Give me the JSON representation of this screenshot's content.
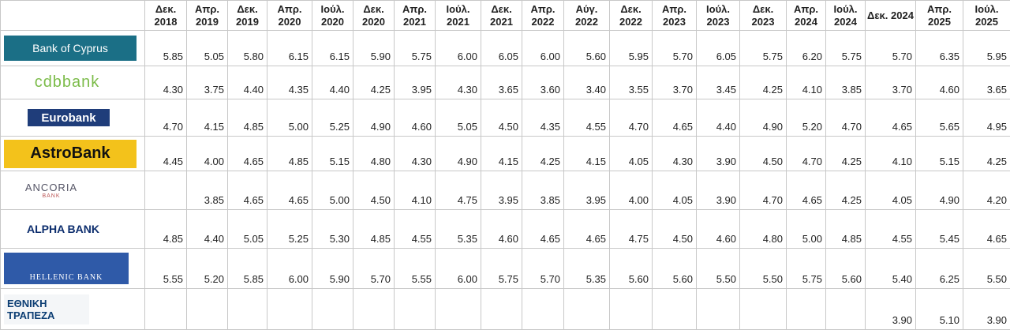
{
  "header": {
    "columns": [
      "Δεκ. 2018",
      "Απρ. 2019",
      "Δεκ. 2019",
      "Απρ. 2020",
      "Ιούλ. 2020",
      "Δεκ. 2020",
      "Απρ. 2021",
      "Ιούλ. 2021",
      "Δεκ. 2021",
      "Απρ. 2022",
      "Αύγ. 2022",
      "Δεκ. 2022",
      "Απρ. 2023",
      "Ιούλ. 2023",
      "Δεκ. 2023",
      "Απρ. 2024",
      "Ιούλ. 2024",
      "Δεκ. 2024",
      "Απρ. 2025",
      "Ιούλ. 2025"
    ]
  },
  "table": {
    "rows": [
      {
        "bank": [
          "Bank of Cyprus"
        ],
        "values": [
          "5.85",
          "5.05",
          "5.80",
          "6.15",
          "6.15",
          "5.90",
          "5.75",
          "6.00",
          "6.05",
          "6.00",
          "5.60",
          "5.95",
          "5.70",
          "6.05",
          "5.75",
          "6.20",
          "5.75",
          "5.70",
          "6.35",
          "5.95"
        ]
      },
      {
        "bank": [
          "cdbbank"
        ],
        "values": [
          "4.30",
          "3.75",
          "4.40",
          "4.35",
          "4.40",
          "4.25",
          "3.95",
          "4.30",
          "3.65",
          "3.60",
          "3.40",
          "3.55",
          "3.70",
          "3.45",
          "4.25",
          "4.10",
          "3.85",
          "3.70",
          "4.60",
          "3.65"
        ]
      },
      {
        "bank": [
          "Eurobank"
        ],
        "values": [
          "4.70",
          "4.15",
          "4.85",
          "5.00",
          "5.25",
          "4.90",
          "4.60",
          "5.05",
          "4.50",
          "4.35",
          "4.55",
          "4.70",
          "4.65",
          "4.40",
          "4.90",
          "5.20",
          "4.70",
          "4.65",
          "5.65",
          "4.95"
        ]
      },
      {
        "bank": [
          "AstroBank"
        ],
        "values": [
          "4.45",
          "4.00",
          "4.65",
          "4.85",
          "5.15",
          "4.80",
          "4.30",
          "4.90",
          "4.15",
          "4.25",
          "4.15",
          "4.05",
          "4.30",
          "3.90",
          "4.50",
          "4.70",
          "4.25",
          "4.10",
          "5.15",
          "4.25"
        ]
      },
      {
        "bank": [
          "ANCORIA",
          "BANK"
        ],
        "values": [
          null,
          "3.85",
          "4.65",
          "4.65",
          "5.00",
          "4.50",
          "4.10",
          "4.75",
          "3.95",
          "3.85",
          "3.95",
          "4.00",
          "4.05",
          "3.90",
          "4.70",
          "4.65",
          "4.25",
          "4.05",
          "4.90",
          "4.20"
        ]
      },
      {
        "bank": [
          "ALPHA BANK"
        ],
        "values": [
          "4.85",
          "4.40",
          "5.05",
          "5.25",
          "5.30",
          "4.85",
          "4.55",
          "5.35",
          "4.60",
          "4.65",
          "4.65",
          "4.75",
          "4.50",
          "4.60",
          "4.80",
          "5.00",
          "4.85",
          "4.55",
          "5.45",
          "4.65"
        ]
      },
      {
        "bank": [
          "HELLENIC BANK"
        ],
        "values": [
          "5.55",
          "5.20",
          "5.85",
          "6.00",
          "5.90",
          "5.70",
          "5.55",
          "6.00",
          "5.75",
          "5.70",
          "5.35",
          "5.60",
          "5.60",
          "5.50",
          "5.50",
          "5.75",
          "5.60",
          "5.40",
          "6.25",
          "5.50"
        ]
      },
      {
        "bank": [
          "ΕΘΝΙΚΗ",
          "ΤΡΑΠΕΖΑ"
        ],
        "values": [
          null,
          null,
          null,
          null,
          null,
          null,
          null,
          null,
          null,
          null,
          null,
          null,
          null,
          null,
          null,
          null,
          null,
          "3.90",
          "5.10",
          "3.90"
        ]
      }
    ]
  }
}
